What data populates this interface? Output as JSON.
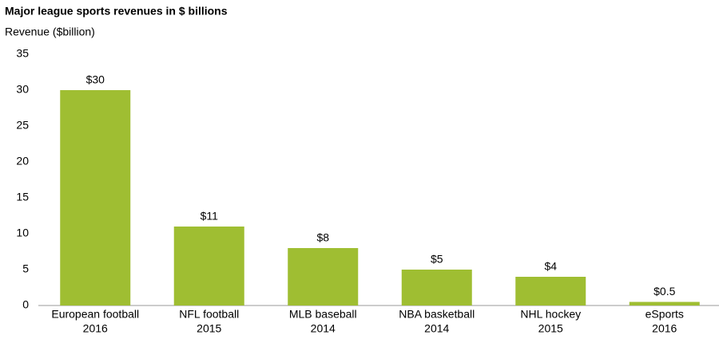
{
  "chart_data": {
    "type": "bar",
    "title": "Major league sports revenues in $ billions",
    "y_axis_label": "Revenue ($billion)",
    "categories": [
      [
        "European football",
        "2016"
      ],
      [
        "NFL football",
        "2015"
      ],
      [
        "MLB baseball",
        "2014"
      ],
      [
        "NBA basketball",
        "2014"
      ],
      [
        "NHL hockey",
        "2015"
      ],
      [
        "eSports",
        "2016"
      ]
    ],
    "values": [
      30,
      11,
      8,
      5,
      4,
      0.5
    ],
    "value_labels": [
      "$30",
      "$11",
      "$8",
      "$5",
      "$4",
      "$0.5"
    ],
    "color": "#9fbe32",
    "ylim": [
      0,
      35
    ],
    "yticks": [
      0,
      5,
      10,
      15,
      20,
      25,
      30,
      35
    ],
    "grid": false
  }
}
